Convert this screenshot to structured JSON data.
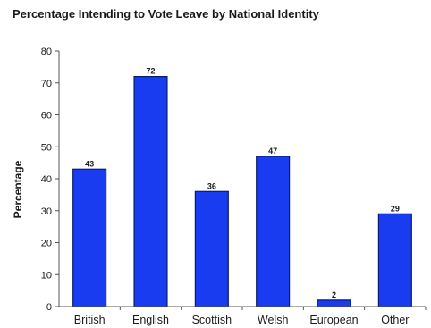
{
  "chart_data": {
    "type": "bar",
    "title": "Percentage Intending to Vote Leave by National Identity",
    "xlabel": "",
    "ylabel": "Percentage",
    "categories": [
      "British",
      "English",
      "Scottish",
      "Welsh",
      "European",
      "Other"
    ],
    "values": [
      43,
      72,
      36,
      47,
      2,
      29
    ],
    "data_labels": [
      "43",
      "72",
      "36",
      "47",
      "2",
      "29"
    ],
    "ylim": [
      0,
      80
    ],
    "yticks": [
      0,
      10,
      20,
      30,
      40,
      50,
      60,
      70,
      80
    ],
    "grid": false,
    "legend": "none",
    "bar_color": "#1a3cf0",
    "bar_edge_color": "#0a1a70"
  }
}
